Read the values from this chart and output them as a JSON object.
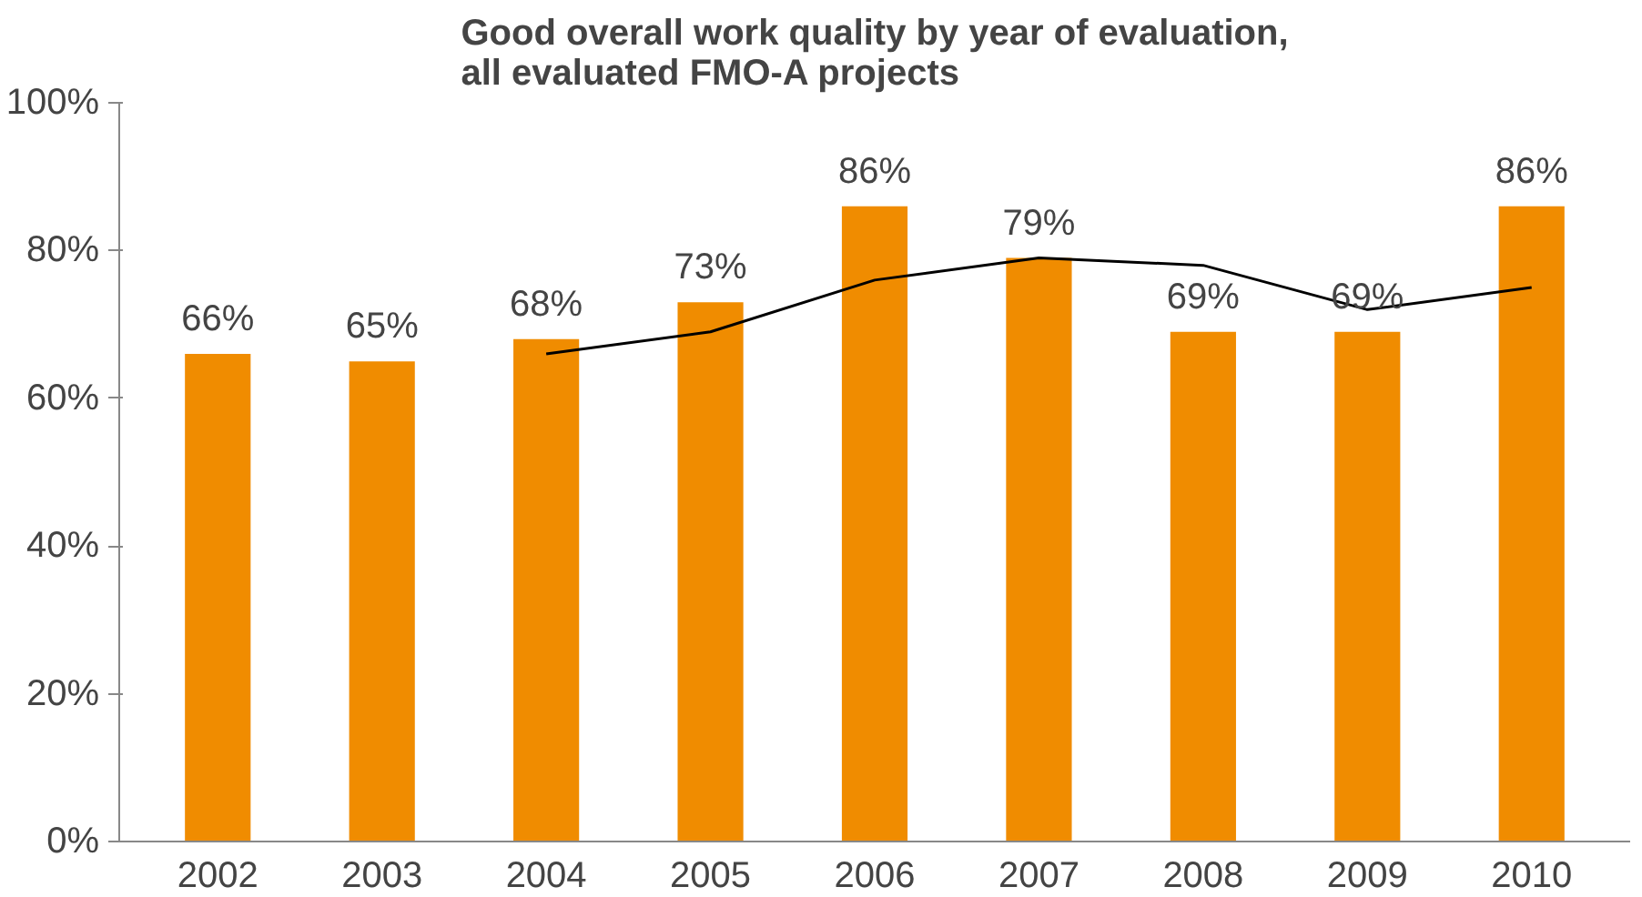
{
  "chart_data": {
    "type": "bar",
    "title": "Good overall work quality by year of evaluation,\nall evaluated FMO-A projects",
    "categories": [
      "2002",
      "2003",
      "2004",
      "2005",
      "2006",
      "2007",
      "2008",
      "2009",
      "2010"
    ],
    "series": [
      {
        "color": "#f08c00",
        "values": [
          66,
          65,
          68,
          73,
          86,
          79,
          69,
          69,
          86
        ],
        "value_labels": [
          "66%",
          "65%",
          "68%",
          "73%",
          "86%",
          "79%",
          "69%",
          "69%",
          "86%"
        ]
      },
      {
        "type": "line",
        "color": "#000000",
        "values": [
          null,
          null,
          66,
          69,
          76,
          79,
          78,
          72,
          75
        ]
      }
    ],
    "ylim": [
      0,
      100
    ],
    "yticks": [
      {
        "value": 0,
        "label": "0%"
      },
      {
        "value": 20,
        "label": "20%"
      },
      {
        "value": 40,
        "label": "40%"
      },
      {
        "value": 60,
        "label": "60%"
      },
      {
        "value": 80,
        "label": "80%"
      },
      {
        "value": 100,
        "label": "100%"
      }
    ],
    "grid": false,
    "marker": "none",
    "line_style": "solid"
  }
}
